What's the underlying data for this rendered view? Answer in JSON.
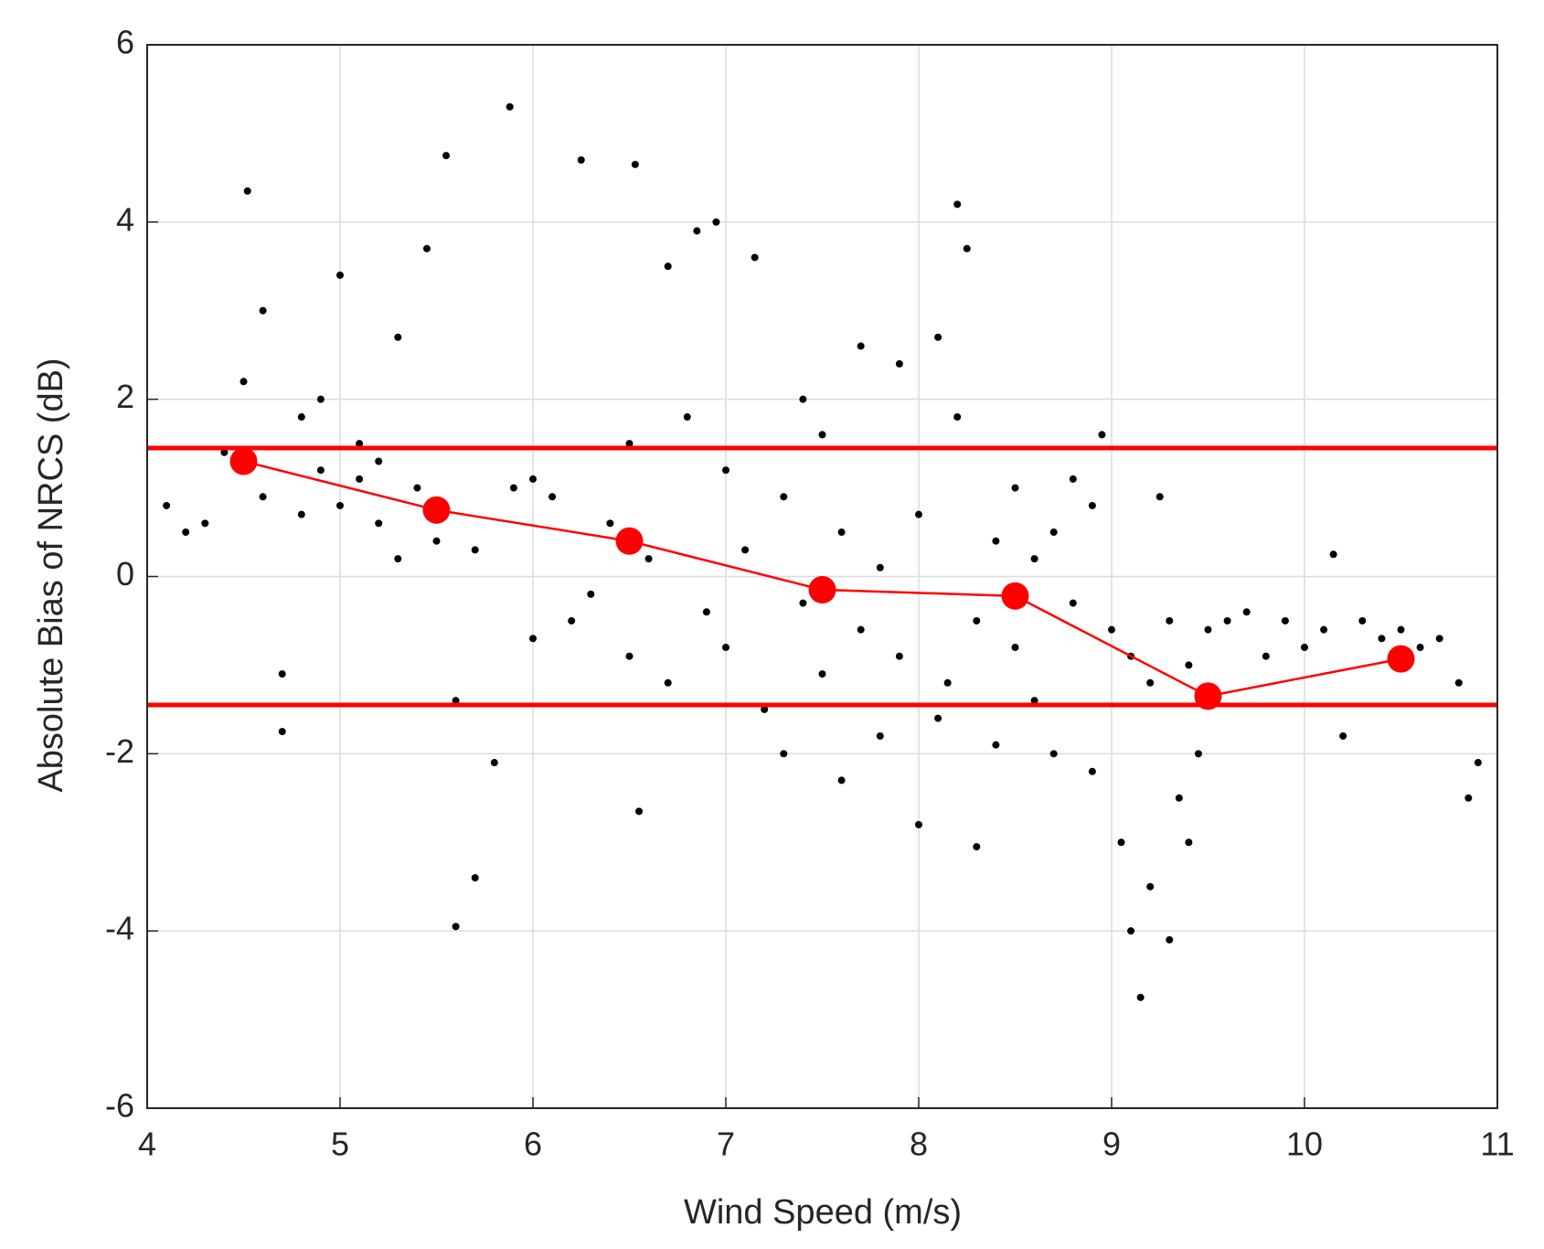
{
  "chart_data": {
    "type": "scatter",
    "xlabel": "Wind Speed (m/s)",
    "ylabel": "Absolute Bias of NRCS (dB)",
    "xlim": [
      4,
      11
    ],
    "xticks": [
      4,
      5,
      6,
      7,
      8,
      9,
      10,
      11
    ],
    "ylim": [
      -6,
      6
    ],
    "yticks": [
      -6,
      -4,
      -2,
      0,
      2,
      4,
      6
    ],
    "grid": true,
    "scatter": {
      "color": "#000000",
      "x": [
        4.1,
        4.2,
        4.3,
        4.4,
        4.5,
        4.52,
        4.6,
        4.6,
        4.7,
        4.7,
        4.8,
        4.8,
        4.9,
        4.9,
        5.0,
        5.0,
        5.1,
        5.1,
        5.2,
        5.2,
        5.3,
        5.3,
        5.4,
        5.45,
        5.5,
        5.55,
        5.6,
        5.6,
        5.7,
        5.7,
        5.8,
        5.88,
        5.9,
        6.0,
        6.0,
        6.1,
        6.2,
        6.25,
        6.3,
        6.4,
        6.5,
        6.5,
        6.53,
        6.55,
        6.6,
        6.7,
        6.7,
        6.8,
        6.85,
        6.9,
        6.95,
        7.0,
        7.0,
        7.1,
        7.15,
        7.2,
        7.3,
        7.3,
        7.4,
        7.4,
        7.5,
        7.5,
        7.6,
        7.6,
        7.7,
        7.7,
        7.8,
        7.8,
        7.9,
        7.9,
        8.0,
        8.0,
        8.1,
        8.1,
        8.15,
        8.2,
        8.2,
        8.25,
        8.3,
        8.3,
        8.4,
        8.4,
        8.5,
        8.5,
        8.6,
        8.6,
        8.7,
        8.7,
        8.8,
        8.8,
        8.9,
        8.9,
        8.95,
        9.0,
        9.05,
        9.1,
        9.1,
        9.15,
        9.2,
        9.2,
        9.25,
        9.3,
        9.3,
        9.35,
        9.4,
        9.4,
        9.45,
        9.5,
        9.6,
        9.7,
        9.8,
        9.9,
        10.0,
        10.1,
        10.15,
        10.2,
        10.3,
        10.4,
        10.5,
        10.6,
        10.7,
        10.8,
        10.85,
        10.9
      ],
      "values": [
        0.8,
        0.5,
        0.6,
        1.4,
        2.2,
        4.35,
        0.9,
        3.0,
        -1.1,
        -1.75,
        1.8,
        0.7,
        2.0,
        1.2,
        3.4,
        0.8,
        1.5,
        1.1,
        0.6,
        1.3,
        2.7,
        0.2,
        1.0,
        3.7,
        0.4,
        4.75,
        -1.4,
        -3.95,
        -3.4,
        0.3,
        -2.1,
        5.3,
        1.0,
        -0.7,
        1.1,
        0.9,
        -0.5,
        4.7,
        -0.2,
        0.6,
        1.5,
        -0.9,
        4.65,
        -2.65,
        0.2,
        3.5,
        -1.2,
        1.8,
        3.9,
        -0.4,
        4.0,
        1.2,
        -0.8,
        0.3,
        3.6,
        -1.5,
        0.9,
        -2.0,
        2.0,
        -0.3,
        1.6,
        -1.1,
        0.5,
        -2.3,
        2.6,
        -0.6,
        -1.8,
        0.1,
        2.4,
        -0.9,
        -2.8,
        0.7,
        2.7,
        -1.6,
        -1.2,
        4.2,
        1.8,
        3.7,
        -3.05,
        -0.5,
        0.4,
        -1.9,
        1.0,
        -0.8,
        0.2,
        -1.4,
        -2.0,
        0.5,
        1.1,
        -0.3,
        0.8,
        -2.2,
        1.6,
        -0.6,
        -3.0,
        -4.0,
        -0.9,
        -4.75,
        -1.2,
        -3.5,
        0.9,
        -4.1,
        -0.5,
        -2.5,
        -1.0,
        -3.0,
        -2.0,
        -0.6,
        -0.5,
        -0.4,
        -0.9,
        -0.5,
        -0.8,
        -0.6,
        0.25,
        -1.8,
        -0.5,
        -0.7,
        -0.6,
        -0.8,
        -0.7,
        -1.2,
        -2.5,
        -2.1
      ]
    },
    "line": {
      "color": "#ff0000",
      "x": [
        4.5,
        5.5,
        6.5,
        7.5,
        8.5,
        9.5,
        10.5
      ],
      "values": [
        1.3,
        0.75,
        0.4,
        -0.15,
        -0.22,
        -1.35,
        -0.93
      ]
    },
    "hlines": {
      "color": "#ff0000",
      "values": [
        1.45,
        -1.45
      ]
    }
  }
}
